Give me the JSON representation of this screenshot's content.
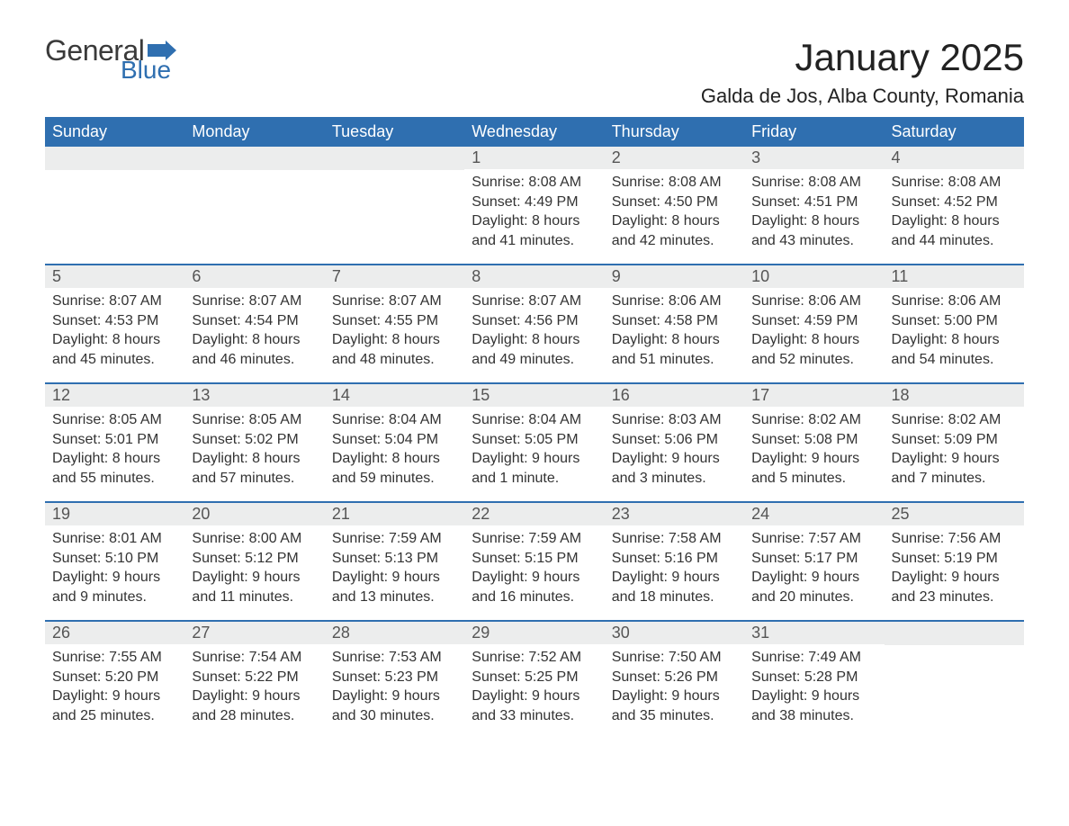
{
  "logo": {
    "text1": "General",
    "text2": "Blue"
  },
  "title": "January 2025",
  "location": "Galda de Jos, Alba County, Romania",
  "colors": {
    "header_bg": "#2f6fb0",
    "header_text": "#ffffff",
    "daynum_bg": "#eceded",
    "row_border": "#2f6fb0",
    "text": "#333333",
    "logo_blue": "#2f6fb0"
  },
  "weekdays": [
    "Sunday",
    "Monday",
    "Tuesday",
    "Wednesday",
    "Thursday",
    "Friday",
    "Saturday"
  ],
  "weeks": [
    [
      {
        "day": ""
      },
      {
        "day": ""
      },
      {
        "day": ""
      },
      {
        "day": "1",
        "sunrise": "Sunrise: 8:08 AM",
        "sunset": "Sunset: 4:49 PM",
        "dl1": "Daylight: 8 hours",
        "dl2": "and 41 minutes."
      },
      {
        "day": "2",
        "sunrise": "Sunrise: 8:08 AM",
        "sunset": "Sunset: 4:50 PM",
        "dl1": "Daylight: 8 hours",
        "dl2": "and 42 minutes."
      },
      {
        "day": "3",
        "sunrise": "Sunrise: 8:08 AM",
        "sunset": "Sunset: 4:51 PM",
        "dl1": "Daylight: 8 hours",
        "dl2": "and 43 minutes."
      },
      {
        "day": "4",
        "sunrise": "Sunrise: 8:08 AM",
        "sunset": "Sunset: 4:52 PM",
        "dl1": "Daylight: 8 hours",
        "dl2": "and 44 minutes."
      }
    ],
    [
      {
        "day": "5",
        "sunrise": "Sunrise: 8:07 AM",
        "sunset": "Sunset: 4:53 PM",
        "dl1": "Daylight: 8 hours",
        "dl2": "and 45 minutes."
      },
      {
        "day": "6",
        "sunrise": "Sunrise: 8:07 AM",
        "sunset": "Sunset: 4:54 PM",
        "dl1": "Daylight: 8 hours",
        "dl2": "and 46 minutes."
      },
      {
        "day": "7",
        "sunrise": "Sunrise: 8:07 AM",
        "sunset": "Sunset: 4:55 PM",
        "dl1": "Daylight: 8 hours",
        "dl2": "and 48 minutes."
      },
      {
        "day": "8",
        "sunrise": "Sunrise: 8:07 AM",
        "sunset": "Sunset: 4:56 PM",
        "dl1": "Daylight: 8 hours",
        "dl2": "and 49 minutes."
      },
      {
        "day": "9",
        "sunrise": "Sunrise: 8:06 AM",
        "sunset": "Sunset: 4:58 PM",
        "dl1": "Daylight: 8 hours",
        "dl2": "and 51 minutes."
      },
      {
        "day": "10",
        "sunrise": "Sunrise: 8:06 AM",
        "sunset": "Sunset: 4:59 PM",
        "dl1": "Daylight: 8 hours",
        "dl2": "and 52 minutes."
      },
      {
        "day": "11",
        "sunrise": "Sunrise: 8:06 AM",
        "sunset": "Sunset: 5:00 PM",
        "dl1": "Daylight: 8 hours",
        "dl2": "and 54 minutes."
      }
    ],
    [
      {
        "day": "12",
        "sunrise": "Sunrise: 8:05 AM",
        "sunset": "Sunset: 5:01 PM",
        "dl1": "Daylight: 8 hours",
        "dl2": "and 55 minutes."
      },
      {
        "day": "13",
        "sunrise": "Sunrise: 8:05 AM",
        "sunset": "Sunset: 5:02 PM",
        "dl1": "Daylight: 8 hours",
        "dl2": "and 57 minutes."
      },
      {
        "day": "14",
        "sunrise": "Sunrise: 8:04 AM",
        "sunset": "Sunset: 5:04 PM",
        "dl1": "Daylight: 8 hours",
        "dl2": "and 59 minutes."
      },
      {
        "day": "15",
        "sunrise": "Sunrise: 8:04 AM",
        "sunset": "Sunset: 5:05 PM",
        "dl1": "Daylight: 9 hours",
        "dl2": "and 1 minute."
      },
      {
        "day": "16",
        "sunrise": "Sunrise: 8:03 AM",
        "sunset": "Sunset: 5:06 PM",
        "dl1": "Daylight: 9 hours",
        "dl2": "and 3 minutes."
      },
      {
        "day": "17",
        "sunrise": "Sunrise: 8:02 AM",
        "sunset": "Sunset: 5:08 PM",
        "dl1": "Daylight: 9 hours",
        "dl2": "and 5 minutes."
      },
      {
        "day": "18",
        "sunrise": "Sunrise: 8:02 AM",
        "sunset": "Sunset: 5:09 PM",
        "dl1": "Daylight: 9 hours",
        "dl2": "and 7 minutes."
      }
    ],
    [
      {
        "day": "19",
        "sunrise": "Sunrise: 8:01 AM",
        "sunset": "Sunset: 5:10 PM",
        "dl1": "Daylight: 9 hours",
        "dl2": "and 9 minutes."
      },
      {
        "day": "20",
        "sunrise": "Sunrise: 8:00 AM",
        "sunset": "Sunset: 5:12 PM",
        "dl1": "Daylight: 9 hours",
        "dl2": "and 11 minutes."
      },
      {
        "day": "21",
        "sunrise": "Sunrise: 7:59 AM",
        "sunset": "Sunset: 5:13 PM",
        "dl1": "Daylight: 9 hours",
        "dl2": "and 13 minutes."
      },
      {
        "day": "22",
        "sunrise": "Sunrise: 7:59 AM",
        "sunset": "Sunset: 5:15 PM",
        "dl1": "Daylight: 9 hours",
        "dl2": "and 16 minutes."
      },
      {
        "day": "23",
        "sunrise": "Sunrise: 7:58 AM",
        "sunset": "Sunset: 5:16 PM",
        "dl1": "Daylight: 9 hours",
        "dl2": "and 18 minutes."
      },
      {
        "day": "24",
        "sunrise": "Sunrise: 7:57 AM",
        "sunset": "Sunset: 5:17 PM",
        "dl1": "Daylight: 9 hours",
        "dl2": "and 20 minutes."
      },
      {
        "day": "25",
        "sunrise": "Sunrise: 7:56 AM",
        "sunset": "Sunset: 5:19 PM",
        "dl1": "Daylight: 9 hours",
        "dl2": "and 23 minutes."
      }
    ],
    [
      {
        "day": "26",
        "sunrise": "Sunrise: 7:55 AM",
        "sunset": "Sunset: 5:20 PM",
        "dl1": "Daylight: 9 hours",
        "dl2": "and 25 minutes."
      },
      {
        "day": "27",
        "sunrise": "Sunrise: 7:54 AM",
        "sunset": "Sunset: 5:22 PM",
        "dl1": "Daylight: 9 hours",
        "dl2": "and 28 minutes."
      },
      {
        "day": "28",
        "sunrise": "Sunrise: 7:53 AM",
        "sunset": "Sunset: 5:23 PM",
        "dl1": "Daylight: 9 hours",
        "dl2": "and 30 minutes."
      },
      {
        "day": "29",
        "sunrise": "Sunrise: 7:52 AM",
        "sunset": "Sunset: 5:25 PM",
        "dl1": "Daylight: 9 hours",
        "dl2": "and 33 minutes."
      },
      {
        "day": "30",
        "sunrise": "Sunrise: 7:50 AM",
        "sunset": "Sunset: 5:26 PM",
        "dl1": "Daylight: 9 hours",
        "dl2": "and 35 minutes."
      },
      {
        "day": "31",
        "sunrise": "Sunrise: 7:49 AM",
        "sunset": "Sunset: 5:28 PM",
        "dl1": "Daylight: 9 hours",
        "dl2": "and 38 minutes."
      },
      {
        "day": ""
      }
    ]
  ]
}
